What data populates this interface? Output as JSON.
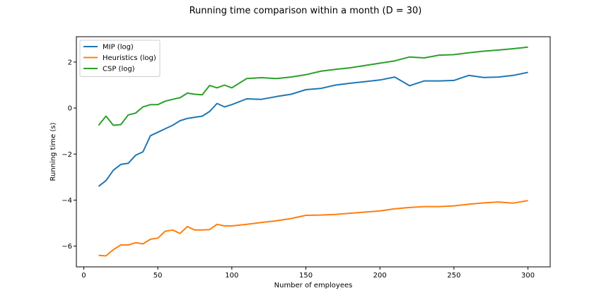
{
  "chart_data": {
    "type": "line",
    "title": "Running time comparison within a month (D = 30)",
    "xlabel": "Number of employees",
    "ylabel": "Running time (s)",
    "xlim": [
      -5,
      315
    ],
    "ylim": [
      -6.9,
      3.1
    ],
    "xticks": [
      0,
      50,
      100,
      150,
      200,
      250,
      300
    ],
    "yticks": [
      -6,
      -4,
      -2,
      0,
      2
    ],
    "grid": false,
    "legend_position": "top-left",
    "x": [
      10,
      15,
      20,
      25,
      30,
      35,
      40,
      45,
      50,
      55,
      60,
      65,
      70,
      75,
      80,
      85,
      90,
      95,
      100,
      110,
      120,
      130,
      140,
      150,
      160,
      170,
      180,
      190,
      200,
      210,
      220,
      230,
      240,
      250,
      260,
      270,
      280,
      290,
      300
    ],
    "series": [
      {
        "name": "MIP (log)",
        "color": "#1f77b4",
        "values": [
          -3.4,
          -3.15,
          -2.7,
          -2.45,
          -2.4,
          -2.05,
          -1.9,
          -1.2,
          -1.05,
          -0.9,
          -0.75,
          -0.55,
          -0.45,
          -0.4,
          -0.35,
          -0.15,
          0.2,
          0.05,
          0.15,
          0.4,
          0.38,
          0.5,
          0.6,
          0.8,
          0.85,
          1.0,
          1.08,
          1.15,
          1.22,
          1.35,
          0.97,
          1.18,
          1.18,
          1.2,
          1.42,
          1.33,
          1.35,
          1.42,
          1.55
        ]
      },
      {
        "name": "Heuristics (log)",
        "color": "#ff7f0e",
        "values": [
          -6.4,
          -6.42,
          -6.15,
          -5.95,
          -5.95,
          -5.85,
          -5.9,
          -5.7,
          -5.65,
          -5.35,
          -5.3,
          -5.45,
          -5.15,
          -5.3,
          -5.3,
          -5.28,
          -5.05,
          -5.12,
          -5.12,
          -5.05,
          -4.97,
          -4.9,
          -4.8,
          -4.66,
          -4.65,
          -4.62,
          -4.57,
          -4.52,
          -4.47,
          -4.38,
          -4.32,
          -4.28,
          -4.28,
          -4.25,
          -4.18,
          -4.12,
          -4.08,
          -4.13,
          -4.02
        ]
      },
      {
        "name": "CSP (log)",
        "color": "#2ca02c",
        "values": [
          -0.75,
          -0.35,
          -0.75,
          -0.72,
          -0.3,
          -0.22,
          0.05,
          0.15,
          0.15,
          0.3,
          0.38,
          0.45,
          0.65,
          0.6,
          0.58,
          0.98,
          0.88,
          1.0,
          0.88,
          1.28,
          1.32,
          1.28,
          1.35,
          1.45,
          1.6,
          1.68,
          1.75,
          1.85,
          1.95,
          2.05,
          2.22,
          2.18,
          2.3,
          2.32,
          2.4,
          2.47,
          2.52,
          2.58,
          2.65
        ]
      }
    ]
  }
}
